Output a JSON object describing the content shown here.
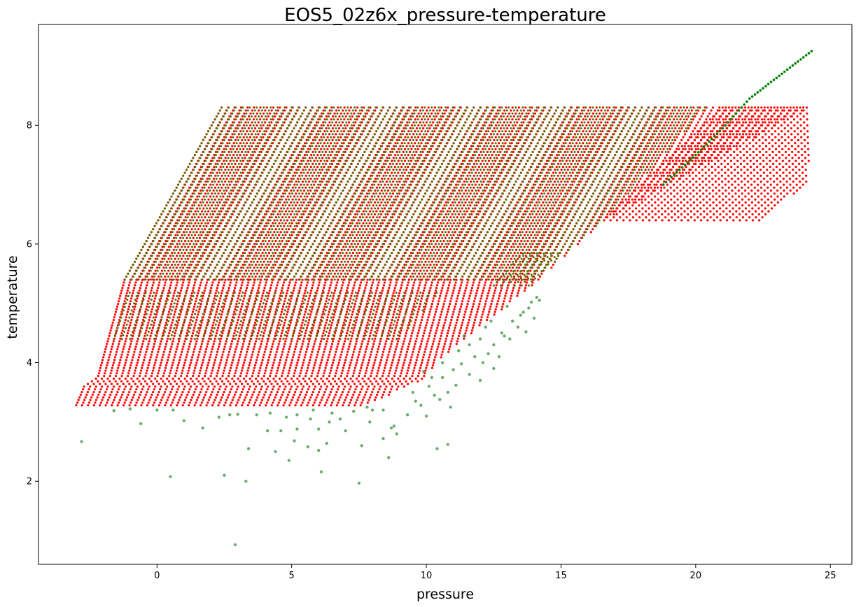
{
  "chart_data": {
    "type": "scatter",
    "title": "EOS5_02z6x_pressure-temperature",
    "xlabel": "pressure",
    "ylabel": "temperature",
    "xlim": [
      -4.4,
      25.8
    ],
    "ylim": [
      0.6,
      9.7
    ],
    "xticks": [
      0,
      5,
      10,
      15,
      20,
      25
    ],
    "yticks": [
      2,
      4,
      6,
      8
    ],
    "grid": false,
    "legend": "none",
    "series_colors": {
      "red_grid": "#ff0000",
      "green_samples": "#2e8b2e",
      "green_overlay": "#556b00"
    },
    "series": [
      {
        "color": "#ff0000",
        "marker_size": 1.6,
        "regions": [
          {
            "kind": "sheared_grid",
            "y_range": [
              3.28,
              5.4
            ],
            "y_step": 0.045,
            "x_step": 0.22,
            "left_edge": [
              [
                3.28,
                -3.0
              ],
              [
                3.6,
                -2.7
              ],
              [
                3.75,
                -2.2
              ],
              [
                5.4,
                -1.2
              ]
            ],
            "right_edge": [
              [
                3.28,
                7.6
              ],
              [
                3.45,
                8.6
              ],
              [
                3.7,
                9.8
              ],
              [
                4.1,
                10.6
              ],
              [
                5.4,
                14.2
              ]
            ]
          },
          {
            "kind": "sheared_grid",
            "y_range": [
              5.4,
              8.3
            ],
            "y_step": 0.05,
            "x_step": 0.24,
            "left_edge": [
              [
                5.4,
                -1.2
              ],
              [
                8.3,
                2.4
              ]
            ],
            "right_edge": [
              [
                5.4,
                14.2
              ],
              [
                6.4,
                16.6
              ],
              [
                8.3,
                24.2
              ]
            ]
          },
          {
            "kind": "sheared_grid",
            "y_range": [
              6.4,
              8.3
            ],
            "y_step": 0.05,
            "x_step": 0.24,
            "left_edge": [
              [
                6.4,
                16.6
              ],
              [
                8.3,
                21.0
              ]
            ],
            "right_edge": [
              [
                6.4,
                22.4
              ],
              [
                7.05,
                24.2
              ],
              [
                8.3,
                24.2
              ]
            ]
          }
        ]
      },
      {
        "color": "#556b00",
        "marker_size": 1.5,
        "regions": [
          {
            "kind": "sheared_grid",
            "y_range": [
              5.4,
              8.3
            ],
            "y_step": 0.05,
            "x_step": 0.26,
            "left_edge": [
              [
                5.4,
                -1.2
              ],
              [
                8.3,
                2.4
              ]
            ],
            "right_edge": [
              [
                5.4,
                14.0
              ],
              [
                6.4,
                16.6
              ],
              [
                8.3,
                20.4
              ]
            ]
          },
          {
            "kind": "sheared_grid",
            "y_range": [
              4.4,
              5.2
            ],
            "y_step": 0.06,
            "x_step": 0.3,
            "left_edge": [
              [
                4.4,
                -1.6
              ],
              [
                5.2,
                -1.0
              ]
            ],
            "right_edge": [
              [
                4.4,
                9.0
              ],
              [
                5.2,
                10.5
              ]
            ]
          },
          {
            "kind": "sheared_grid",
            "y_range": [
              5.3,
              5.85
            ],
            "y_step": 0.06,
            "x_step": 0.26,
            "left_edge": [
              [
                5.3,
                12.5
              ],
              [
                5.85,
                13.6
              ]
            ],
            "right_edge": [
              [
                5.3,
                14.0
              ],
              [
                5.85,
                15.0
              ]
            ]
          }
        ]
      },
      {
        "color": "#008000",
        "marker_size": 1.8,
        "curve": [
          [
            18.8,
            7.0
          ],
          [
            20.0,
            7.5
          ],
          [
            21.0,
            7.95
          ],
          [
            22.0,
            8.45
          ],
          [
            23.0,
            8.8
          ],
          [
            24.3,
            9.25
          ]
        ],
        "curve_step": 0.1
      },
      {
        "color": "#2e8b2e",
        "opacity": 0.7,
        "marker_size": 2.2,
        "points": [
          [
            -2.8,
            2.67
          ],
          [
            2.9,
            0.93
          ],
          [
            0.5,
            2.08
          ],
          [
            2.5,
            2.1
          ],
          [
            3.3,
            2.0
          ],
          [
            7.5,
            1.97
          ],
          [
            -1.6,
            3.19
          ],
          [
            -1.0,
            3.22
          ],
          [
            -0.6,
            2.97
          ],
          [
            0.0,
            3.2
          ],
          [
            0.6,
            3.2
          ],
          [
            1.0,
            3.02
          ],
          [
            1.7,
            2.9
          ],
          [
            2.3,
            3.08
          ],
          [
            2.7,
            3.12
          ],
          [
            3.0,
            3.13
          ],
          [
            3.4,
            2.55
          ],
          [
            3.7,
            3.12
          ],
          [
            4.1,
            2.85
          ],
          [
            4.2,
            3.15
          ],
          [
            4.4,
            2.5
          ],
          [
            4.6,
            2.85
          ],
          [
            4.8,
            3.08
          ],
          [
            4.9,
            2.35
          ],
          [
            5.1,
            2.68
          ],
          [
            5.2,
            2.88
          ],
          [
            5.2,
            3.12
          ],
          [
            5.6,
            2.58
          ],
          [
            5.7,
            3.05
          ],
          [
            5.8,
            3.2
          ],
          [
            6.0,
            2.88
          ],
          [
            6.0,
            2.52
          ],
          [
            6.1,
            2.16
          ],
          [
            6.3,
            2.64
          ],
          [
            6.4,
            3.0
          ],
          [
            6.5,
            3.15
          ],
          [
            6.8,
            3.05
          ],
          [
            7.0,
            2.85
          ],
          [
            7.3,
            3.18
          ],
          [
            7.6,
            2.6
          ],
          [
            7.8,
            3.25
          ],
          [
            7.9,
            3.0
          ],
          [
            8.0,
            3.2
          ],
          [
            8.4,
            2.72
          ],
          [
            8.4,
            3.2
          ],
          [
            8.6,
            2.4
          ],
          [
            8.7,
            2.9
          ],
          [
            8.8,
            2.93
          ],
          [
            8.9,
            2.8
          ],
          [
            9.3,
            3.12
          ],
          [
            9.5,
            3.5
          ],
          [
            9.6,
            3.35
          ],
          [
            9.8,
            3.28
          ],
          [
            10.0,
            3.1
          ],
          [
            10.1,
            3.6
          ],
          [
            10.3,
            3.45
          ],
          [
            10.4,
            2.55
          ],
          [
            10.5,
            3.38
          ],
          [
            10.6,
            3.75
          ],
          [
            10.8,
            2.62
          ],
          [
            10.8,
            3.5
          ],
          [
            10.9,
            3.25
          ],
          [
            11.0,
            3.88
          ],
          [
            11.1,
            3.62
          ],
          [
            11.3,
            3.98
          ],
          [
            11.6,
            3.8
          ],
          [
            11.8,
            4.1
          ],
          [
            12.0,
            3.7
          ],
          [
            12.1,
            4.0
          ],
          [
            12.3,
            4.15
          ],
          [
            12.5,
            3.9
          ],
          [
            12.5,
            4.3
          ],
          [
            12.7,
            4.1
          ],
          [
            12.8,
            4.5
          ],
          [
            12.9,
            4.45
          ],
          [
            13.1,
            4.4
          ],
          [
            13.2,
            4.7
          ],
          [
            13.4,
            4.6
          ],
          [
            13.5,
            4.8
          ],
          [
            13.6,
            4.85
          ],
          [
            13.7,
            4.52
          ],
          [
            13.8,
            4.92
          ],
          [
            13.9,
            5.02
          ],
          [
            14.0,
            4.75
          ],
          [
            14.1,
            5.1
          ],
          [
            14.2,
            5.05
          ],
          [
            11.6,
            4.3
          ],
          [
            12.0,
            4.4
          ],
          [
            12.2,
            4.6
          ],
          [
            11.2,
            4.2
          ],
          [
            12.4,
            4.7
          ],
          [
            13.0,
            4.95
          ],
          [
            10.6,
            4.0
          ],
          [
            11.4,
            4.45
          ],
          [
            9.9,
            3.85
          ],
          [
            10.2,
            3.75
          ]
        ]
      }
    ]
  }
}
